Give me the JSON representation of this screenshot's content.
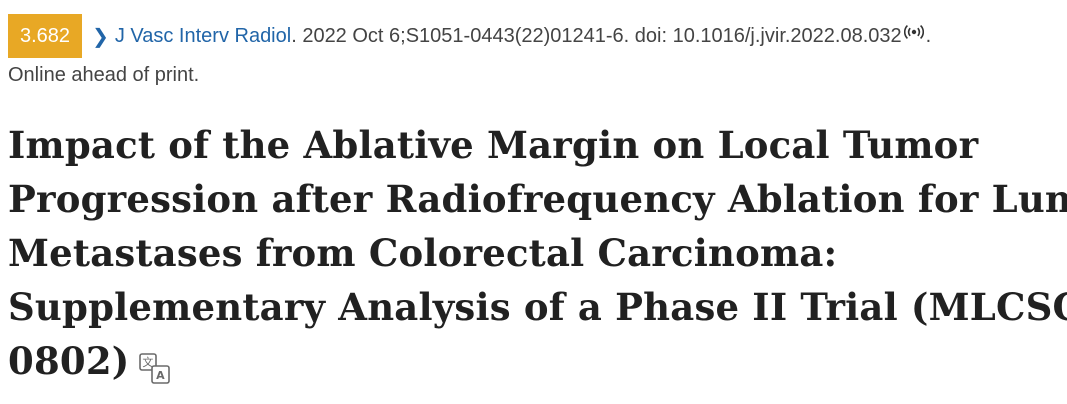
{
  "citation": {
    "impact_factor": "3.682",
    "journal": "J Vasc Interv Radiol",
    "details": ". 2022 Oct 6;S1051-0443(22)01241-6. doi: 10.1016/j.jvir.2022.08.032",
    "end_punct": ".",
    "status": "Online ahead of print.",
    "colors": {
      "badge": "#e8a825",
      "link": "#2165a8"
    },
    "icons": {
      "chevron": "chevron-right-icon",
      "broadcast": "broadcast-icon"
    }
  },
  "article": {
    "title_lines": [
      "Impact of the Ablative Margin on Local Tumor",
      "Progression after Radiofrequency Ablation for Lung",
      "Metastases from Colorectal Carcinoma:",
      "Supplementary Analysis of a Phase II Trial (MLCSG-",
      "0802)"
    ],
    "translate_icon": "translate-icon"
  }
}
